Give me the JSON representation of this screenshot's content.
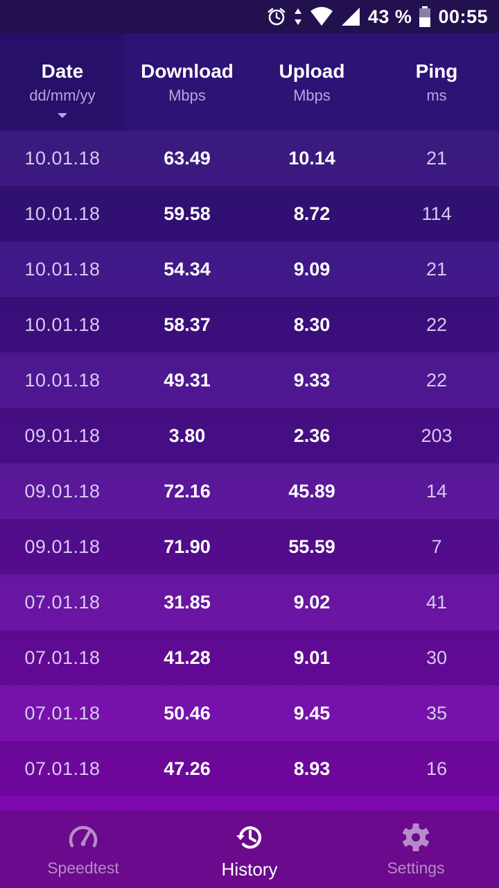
{
  "status_bar": {
    "battery": "43 %",
    "time": "00:55",
    "icons": [
      "alarm-icon",
      "data-arrows-icon",
      "wifi-icon",
      "signal-icon",
      "battery-icon"
    ]
  },
  "header": {
    "date": {
      "label": "Date",
      "unit": "dd/mm/yy"
    },
    "download": {
      "label": "Download",
      "unit": "Mbps"
    },
    "upload": {
      "label": "Upload",
      "unit": "Mbps"
    },
    "ping": {
      "label": "Ping",
      "unit": "ms"
    }
  },
  "rows": [
    {
      "date": "10.01.18",
      "download": "63.49",
      "upload": "10.14",
      "ping": "21"
    },
    {
      "date": "10.01.18",
      "download": "59.58",
      "upload": "8.72",
      "ping": "114"
    },
    {
      "date": "10.01.18",
      "download": "54.34",
      "upload": "9.09",
      "ping": "21"
    },
    {
      "date": "10.01.18",
      "download": "58.37",
      "upload": "8.30",
      "ping": "22"
    },
    {
      "date": "10.01.18",
      "download": "49.31",
      "upload": "9.33",
      "ping": "22"
    },
    {
      "date": "09.01.18",
      "download": "3.80",
      "upload": "2.36",
      "ping": "203"
    },
    {
      "date": "09.01.18",
      "download": "72.16",
      "upload": "45.89",
      "ping": "14"
    },
    {
      "date": "09.01.18",
      "download": "71.90",
      "upload": "55.59",
      "ping": "7"
    },
    {
      "date": "07.01.18",
      "download": "31.85",
      "upload": "9.02",
      "ping": "41"
    },
    {
      "date": "07.01.18",
      "download": "41.28",
      "upload": "9.01",
      "ping": "30"
    },
    {
      "date": "07.01.18",
      "download": "50.46",
      "upload": "9.45",
      "ping": "35"
    },
    {
      "date": "07.01.18",
      "download": "47.26",
      "upload": "8.93",
      "ping": "16"
    }
  ],
  "nav": {
    "speedtest": {
      "label": "Speedtest",
      "icon": "speedometer-icon"
    },
    "history": {
      "label": "History",
      "icon": "history-icon"
    },
    "settings": {
      "label": "Settings",
      "icon": "gear-icon"
    }
  },
  "colors": {
    "accent_active": "#ffffff",
    "inactive_nav": "#b98ac9",
    "header_bg": "#2e1376",
    "nav_bg": "#6b0a8c"
  }
}
